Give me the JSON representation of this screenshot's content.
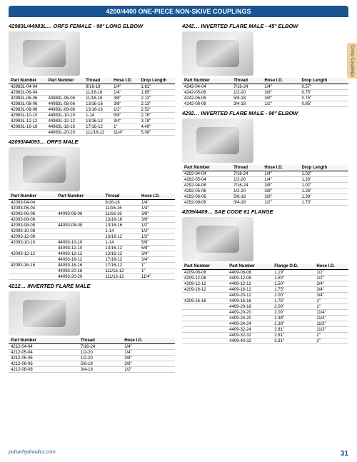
{
  "header": "4200/4400 ONE-PIECE NON-SKIVE COUPLINGS",
  "tab": "Crimp Couplings",
  "footer_url": "pulsarhydraulics.com",
  "footer_page": "31",
  "left": [
    {
      "title": "42983L/44983L… ORFS FEMALE - 90° LONG ELBOW",
      "cols": [
        "Part Number",
        "Part Number",
        "Thread",
        "Hose I.D.",
        "Drop Length"
      ],
      "rows": [
        [
          "42983L-04-04",
          "",
          "9/16-18",
          "1/4\"",
          "1.81\""
        ],
        [
          "42983L-06-04",
          "",
          "11/16-16",
          "1/4\"",
          "1.85\""
        ],
        [
          "42983L-06-06",
          "44983L-06-06",
          "11/16-16",
          "3/8\"",
          "2.13\""
        ],
        [
          "42983L-08-06",
          "44983L-08-06",
          "13/16-16",
          "3/8\"",
          "2.13\""
        ],
        [
          "42983L-08-08",
          "44983L-08-08",
          "13/16-16",
          "1/2\"",
          "2.52\""
        ],
        [
          "42983L-10-10",
          "44983L-10-10",
          "1-14",
          "5/8\"",
          "2.76\""
        ],
        [
          "42983L-12-12",
          "44983L-12-12",
          "13/16-12",
          "3/4\"",
          "3.78\""
        ],
        [
          "42983L-16-16",
          "44983L-16-16",
          "17/16-12",
          "1\"",
          "4.49\""
        ],
        [
          "",
          "44983L-20-20",
          "111/16-12",
          "11/4\"",
          "5.08\""
        ]
      ]
    },
    {
      "title": "42093/44093… ORFS MALE",
      "cols": [
        "Part Number",
        "Part Number",
        "Thread",
        "Hose I.D."
      ],
      "rows": [
        [
          "42093-04-04",
          "",
          "9/16-18",
          "1/4\""
        ],
        [
          "42093-06-04",
          "",
          "11/16-16",
          "1/4\""
        ],
        [
          "42093-06-06",
          "44093-06-06",
          "11/16-16",
          "3/8\""
        ],
        [
          "42093-08-06",
          "",
          "13/16-16",
          "3/8\""
        ],
        [
          "42093-08-08",
          "44093-08-08",
          "13/16-16",
          "1/2\""
        ],
        [
          "42093-10-08",
          "",
          "1-14",
          "1/2\""
        ],
        [
          "42093-12-08",
          "",
          "13/16-12",
          "1/2\""
        ],
        [
          "42093-10-10",
          "44093-10-10",
          "1-14",
          "5/8\""
        ],
        [
          "",
          "44093-12-10",
          "13/16-12",
          "5/8\""
        ],
        [
          "42093-12-12",
          "44093-12-12",
          "13/16-12",
          "3/4\""
        ],
        [
          "",
          "44093-16-12",
          "17/16-12",
          "3/4\""
        ],
        [
          "42093-16-16",
          "44093-16-16",
          "17/16-12",
          "1\""
        ],
        [
          "",
          "44093-20-16",
          "111/16-12",
          "1\""
        ],
        [
          "",
          "44093-20-20",
          "111/16-12",
          "11/4\""
        ]
      ]
    },
    {
      "title": "4212… INVERTED FLARE MALE",
      "cols": [
        "Part Number",
        "Thread",
        "Hose I.D."
      ],
      "rows": [
        [
          "4212-04-04",
          "7/16-24",
          "1/4\""
        ],
        [
          "4212-05-04",
          "1/2-20",
          "1/4\""
        ],
        [
          "4212-05-06",
          "1/2-20",
          "3/8\""
        ],
        [
          "4212-06-06",
          "5/8-18",
          "3/8\""
        ],
        [
          "4212-08-08",
          "3/4-18",
          "1/2\""
        ]
      ]
    }
  ],
  "right": [
    {
      "title": "4242… INVERTED FLARE MALE - 45° ELBOW",
      "cols": [
        "Part Number",
        "Thread",
        "Hose I.D.",
        "Drop Length"
      ],
      "rows": [
        [
          "4242-04-04",
          "7/16-24",
          "1/4\"",
          "0.57\""
        ],
        [
          "4242-05-06",
          "1/2-20",
          "3/8\"",
          "0.75\""
        ],
        [
          "4242-06-06",
          "5/8-18",
          "3/8\"",
          "0.75\""
        ],
        [
          "4242-08-08",
          "3/4-18",
          "1/2\"",
          "0.85\""
        ]
      ]
    },
    {
      "title": "4292… INVERTED FLARE MALE - 90° ELBOW",
      "cols": [
        "Part Number",
        "Thread",
        "Hose I.D.",
        "Drop Length"
      ],
      "rows": [
        [
          "4292-04-04",
          "7/16-24",
          "1/4\"",
          "1.02\""
        ],
        [
          "4292-05-04",
          "1/2-20",
          "1/4\"",
          "1.26\""
        ],
        [
          "4292-04-06",
          "7/16-24",
          "3/8\"",
          "1.02\""
        ],
        [
          "4292-05-06",
          "1/2-20",
          "3/8\"",
          "1.26\""
        ],
        [
          "4292-06-06",
          "5/8-18",
          "3/8\"",
          "1.38\""
        ],
        [
          "4292-08-08",
          "3/4-18",
          "1/2\"",
          "1.73\""
        ]
      ]
    },
    {
      "title": "4209/4409… SAE CODE 61 FLANGE",
      "cols": [
        "Part Number",
        "Part Number",
        "Flange O.D.",
        "Hose I.D."
      ],
      "rows": [
        [
          "4209-08-08",
          "4409-08-08",
          "1.19\"",
          "1/2\""
        ],
        [
          "4209-12-08",
          "4409-12-08",
          "1.50\"",
          "1/2\""
        ],
        [
          "4209-12-12",
          "4409-12-12",
          "1.50\"",
          "3/4\""
        ],
        [
          "4209-16-12",
          "4409-16-12",
          "1.75\"",
          "3/4\""
        ],
        [
          "",
          "4409-20-12",
          "2.00\"",
          "3/4\""
        ],
        [
          "4209-16-16",
          "4409-16-16",
          "1.75\"",
          "1\""
        ],
        [
          "",
          "4409-20-16",
          "2.00\"",
          "1\""
        ],
        [
          "",
          "4409-20-20",
          "2.00\"",
          "11/4\""
        ],
        [
          "",
          "4409-24-20",
          "2.38\"",
          "11/4\""
        ],
        [
          "",
          "4409-24-24",
          "2.38\"",
          "11/2\""
        ],
        [
          "",
          "4409-32-24",
          "2.81\"",
          "11/2\""
        ],
        [
          "",
          "4409-32-32",
          "2.81\"",
          "2\""
        ],
        [
          "",
          "4409-40-32",
          "3.31\"",
          "2\""
        ]
      ]
    }
  ]
}
